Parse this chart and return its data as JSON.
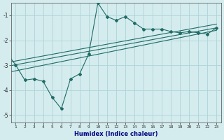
{
  "xlabel": "Humidex (Indice chaleur)",
  "bg_color": "#d4ecee",
  "grid_color": "#aed4d8",
  "line_color": "#1f6b65",
  "xlim": [
    0.5,
    23.5
  ],
  "ylim": [
    -5.3,
    -0.5
  ],
  "yticks": [
    -5,
    -4,
    -3,
    -2,
    -1
  ],
  "xticks": [
    1,
    2,
    3,
    4,
    5,
    6,
    7,
    8,
    9,
    10,
    11,
    12,
    13,
    14,
    15,
    16,
    17,
    18,
    19,
    20,
    21,
    22,
    23
  ],
  "main_x": [
    0,
    1,
    2,
    3,
    4,
    5,
    6,
    7,
    8,
    9,
    10,
    11,
    12,
    13,
    14,
    15,
    16,
    17,
    18,
    19,
    20,
    21,
    22,
    23
  ],
  "main_y": [
    -2.5,
    -3.0,
    -3.6,
    -3.55,
    -3.65,
    -4.3,
    -4.75,
    -3.55,
    -3.35,
    -2.55,
    -0.5,
    -1.05,
    -1.2,
    -1.05,
    -1.3,
    -1.55,
    -1.55,
    -1.55,
    -1.65,
    -1.7,
    -1.65,
    -1.7,
    -1.75,
    -1.5
  ],
  "trend_lines": [
    {
      "x": [
        0,
        23
      ],
      "y": [
        -2.9,
        -1.35
      ]
    },
    {
      "x": [
        0,
        23
      ],
      "y": [
        -3.05,
        -1.5
      ]
    },
    {
      "x": [
        0,
        23
      ],
      "y": [
        -3.3,
        -1.6
      ]
    }
  ]
}
